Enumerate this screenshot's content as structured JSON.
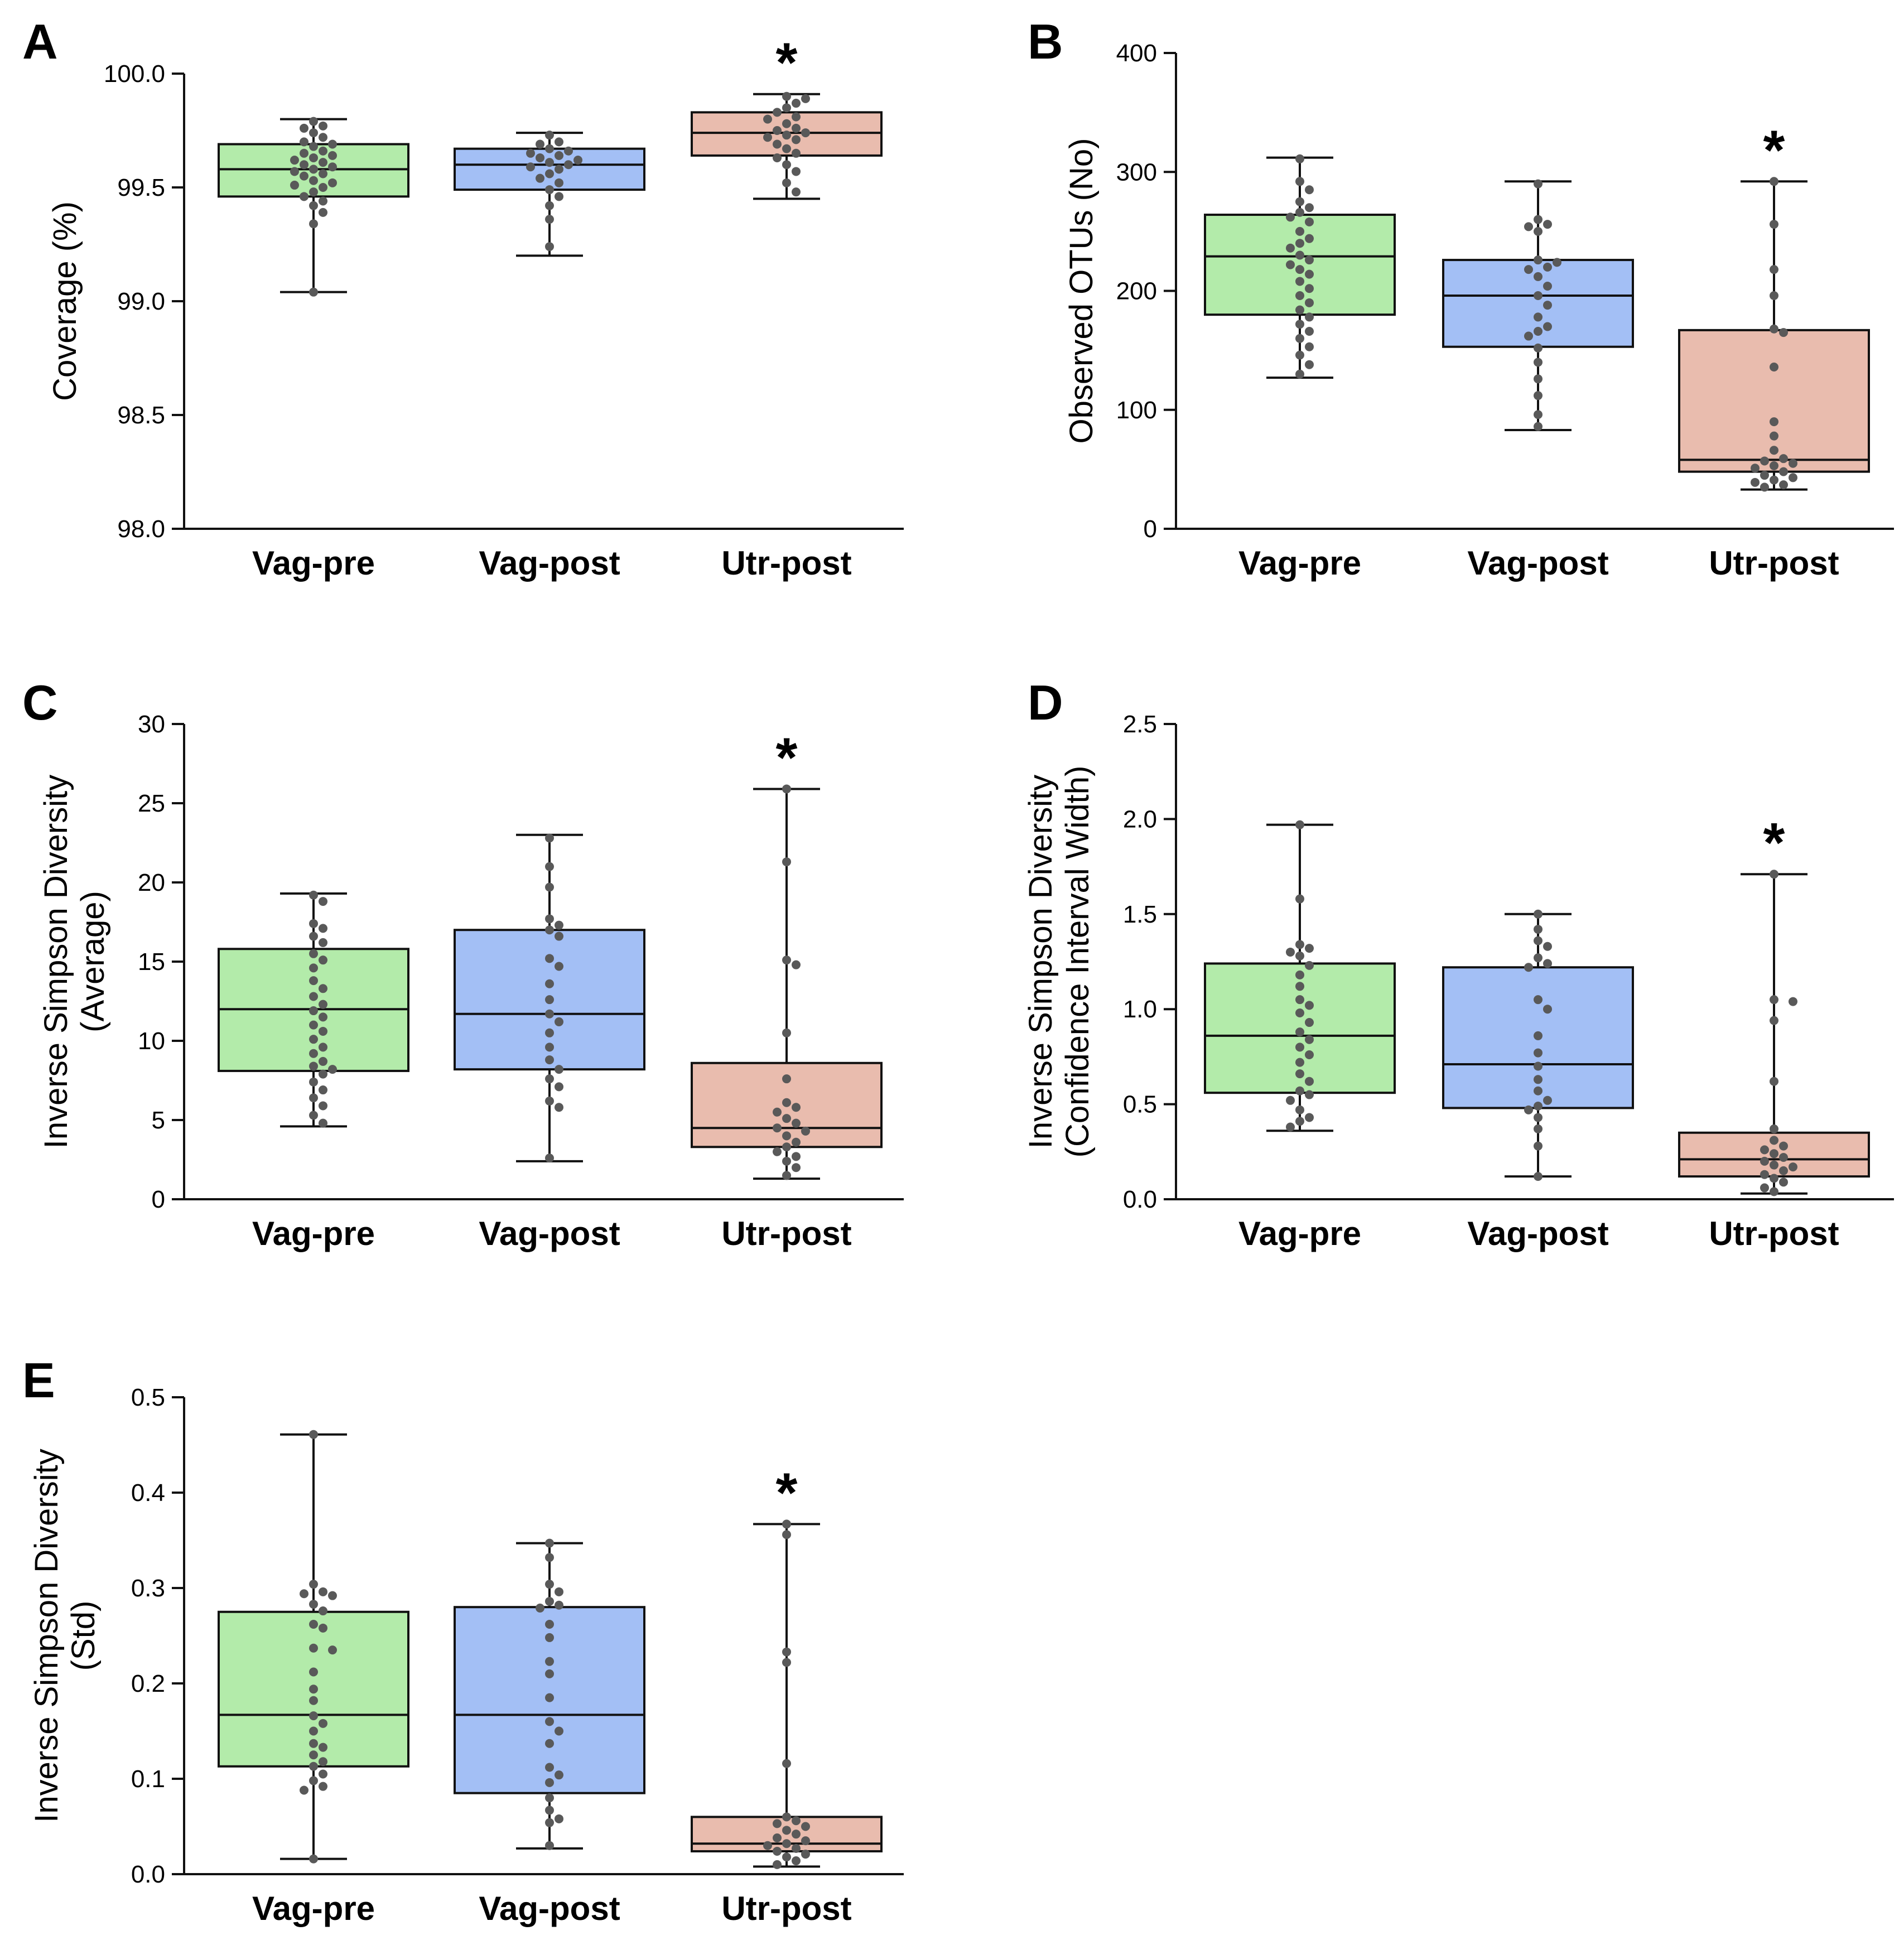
{
  "figure": {
    "title": ""
  },
  "chart_data": [
    {
      "id": "A",
      "panel_label": "A",
      "type": "box",
      "ylabel_lines": [
        "Coverage (%)"
      ],
      "ylim": [
        98.0,
        100.0
      ],
      "yticks": [
        98.0,
        98.5,
        99.0,
        99.5,
        100.0
      ],
      "ytick_labels": [
        "98.0",
        "98.5",
        "99.0",
        "99.5",
        "100.0"
      ],
      "categories": [
        "Vag-pre",
        "Vag-post",
        "Utr-post"
      ],
      "box_colors": [
        "#b3ebaa",
        "#a3bff5",
        "#e9bcae"
      ],
      "significance": {
        "category_index": 2,
        "mark": "*"
      },
      "groups": [
        {
          "name": "Vag-pre",
          "min": 99.04,
          "q1": 99.46,
          "median": 99.58,
          "q3": 99.69,
          "max": 99.8,
          "points": [
            99.79,
            99.77,
            99.76,
            99.74,
            99.72,
            99.7,
            99.69,
            99.68,
            99.66,
            99.65,
            99.64,
            99.63,
            99.62,
            99.61,
            99.6,
            99.59,
            99.58,
            99.57,
            99.56,
            99.55,
            99.53,
            99.52,
            99.51,
            99.5,
            99.48,
            99.46,
            99.44,
            99.42,
            99.39,
            99.34,
            99.04
          ]
        },
        {
          "name": "Vag-post",
          "min": 99.2,
          "q1": 99.49,
          "median": 99.6,
          "q3": 99.67,
          "max": 99.74,
          "points": [
            99.73,
            99.7,
            99.69,
            99.67,
            99.66,
            99.65,
            99.64,
            99.63,
            99.62,
            99.61,
            99.6,
            99.59,
            99.58,
            99.56,
            99.54,
            99.52,
            99.49,
            99.46,
            99.42,
            99.36,
            99.24
          ]
        },
        {
          "name": "Utr-post",
          "min": 99.45,
          "q1": 99.64,
          "median": 99.74,
          "q3": 99.83,
          "max": 99.91,
          "points": [
            99.9,
            99.89,
            99.87,
            99.85,
            99.83,
            99.81,
            99.8,
            99.78,
            99.76,
            99.75,
            99.74,
            99.73,
            99.72,
            99.71,
            99.69,
            99.67,
            99.65,
            99.63,
            99.6,
            99.57,
            99.52,
            99.48
          ]
        }
      ]
    },
    {
      "id": "B",
      "panel_label": "B",
      "type": "box",
      "ylabel_lines": [
        "Observed OTUs (No)"
      ],
      "ylim": [
        0,
        400
      ],
      "yticks": [
        0,
        100,
        200,
        300,
        400
      ],
      "ytick_labels": [
        "0",
        "100",
        "200",
        "300",
        "400"
      ],
      "categories": [
        "Vag-pre",
        "Vag-post",
        "Utr-post"
      ],
      "box_colors": [
        "#b3ebaa",
        "#a3bff5",
        "#e9bcae"
      ],
      "significance": {
        "category_index": 2,
        "mark": "*"
      },
      "groups": [
        {
          "name": "Vag-pre",
          "min": 127,
          "q1": 180,
          "median": 229,
          "q3": 264,
          "max": 312,
          "points": [
            311,
            292,
            285,
            275,
            270,
            266,
            262,
            258,
            250,
            244,
            240,
            236,
            230,
            226,
            222,
            218,
            214,
            208,
            202,
            196,
            190,
            184,
            178,
            172,
            166,
            160,
            153,
            146,
            138,
            130
          ]
        },
        {
          "name": "Vag-post",
          "min": 83,
          "q1": 153,
          "median": 196,
          "q3": 226,
          "max": 292,
          "points": [
            290,
            260,
            256,
            254,
            250,
            226,
            224,
            220,
            218,
            212,
            204,
            196,
            188,
            178,
            170,
            166,
            162,
            152,
            140,
            126,
            112,
            96,
            86
          ]
        },
        {
          "name": "Utr-post",
          "min": 33,
          "q1": 48,
          "median": 58,
          "q3": 167,
          "max": 292,
          "points": [
            292,
            256,
            218,
            196,
            168,
            165,
            136,
            90,
            78,
            66,
            59,
            57,
            55,
            53,
            51,
            48,
            45,
            43,
            41,
            39,
            37,
            35
          ]
        }
      ]
    },
    {
      "id": "C",
      "panel_label": "C",
      "type": "box",
      "ylabel_lines": [
        "Inverse Simpson Diversity",
        "(Average)"
      ],
      "ylim": [
        0,
        30
      ],
      "yticks": [
        0,
        5,
        10,
        15,
        20,
        25,
        30
      ],
      "ytick_labels": [
        "0",
        "5",
        "10",
        "15",
        "20",
        "25",
        "30"
      ],
      "categories": [
        "Vag-pre",
        "Vag-post",
        "Utr-post"
      ],
      "box_colors": [
        "#b3ebaa",
        "#a3bff5",
        "#e9bcae"
      ],
      "significance": {
        "category_index": 2,
        "mark": "*"
      },
      "groups": [
        {
          "name": "Vag-pre",
          "min": 4.6,
          "q1": 8.1,
          "median": 12.0,
          "q3": 15.8,
          "max": 19.3,
          "points": [
            19.2,
            18.8,
            17.4,
            17.1,
            16.6,
            16.2,
            15.5,
            15.1,
            14.6,
            13.8,
            13.3,
            12.8,
            12.3,
            11.9,
            11.5,
            11.0,
            10.6,
            10.1,
            9.6,
            9.2,
            8.7,
            8.4,
            8.2,
            7.9,
            7.4,
            6.9,
            6.4,
            5.9,
            5.3,
            4.8
          ]
        },
        {
          "name": "Vag-post",
          "min": 2.4,
          "q1": 8.2,
          "median": 11.7,
          "q3": 17.0,
          "max": 23.0,
          "points": [
            22.8,
            21.0,
            19.7,
            17.7,
            17.3,
            17.0,
            16.6,
            15.2,
            14.7,
            13.6,
            12.6,
            11.7,
            11.2,
            10.5,
            9.6,
            8.8,
            8.2,
            7.6,
            7.1,
            6.2,
            5.8,
            2.6
          ]
        },
        {
          "name": "Utr-post",
          "min": 1.3,
          "q1": 3.3,
          "median": 4.5,
          "q3": 8.6,
          "max": 25.9,
          "points": [
            25.9,
            21.3,
            15.1,
            14.8,
            10.5,
            7.6,
            6.1,
            5.8,
            5.5,
            5.1,
            4.8,
            4.5,
            4.3,
            4.0,
            3.6,
            3.3,
            3.0,
            2.7,
            2.4,
            2.0,
            1.5
          ]
        }
      ]
    },
    {
      "id": "D",
      "panel_label": "D",
      "type": "box",
      "ylabel_lines": [
        "Inverse Simpson Diversity",
        "(Confidence Interval Width)"
      ],
      "ylim": [
        0.0,
        2.5
      ],
      "yticks": [
        0.0,
        0.5,
        1.0,
        1.5,
        2.0,
        2.5
      ],
      "ytick_labels": [
        "0.0",
        "0.5",
        "1.0",
        "1.5",
        "2.0",
        "2.5"
      ],
      "categories": [
        "Vag-pre",
        "Vag-post",
        "Utr-post"
      ],
      "box_colors": [
        "#b3ebaa",
        "#a3bff5",
        "#e9bcae"
      ],
      "significance": {
        "category_index": 2,
        "mark": "*"
      },
      "groups": [
        {
          "name": "Vag-pre",
          "min": 0.36,
          "q1": 0.56,
          "median": 0.86,
          "q3": 1.24,
          "max": 1.97,
          "points": [
            1.97,
            1.58,
            1.34,
            1.32,
            1.3,
            1.28,
            1.23,
            1.18,
            1.12,
            1.05,
            1.02,
            0.98,
            0.93,
            0.88,
            0.84,
            0.8,
            0.76,
            0.72,
            0.66,
            0.62,
            0.57,
            0.55,
            0.52,
            0.47,
            0.43,
            0.41,
            0.38
          ]
        },
        {
          "name": "Vag-post",
          "min": 0.12,
          "q1": 0.48,
          "median": 0.71,
          "q3": 1.22,
          "max": 1.5,
          "points": [
            1.5,
            1.42,
            1.36,
            1.33,
            1.27,
            1.24,
            1.22,
            1.05,
            1.0,
            0.86,
            0.77,
            0.7,
            0.63,
            0.57,
            0.52,
            0.49,
            0.47,
            0.43,
            0.37,
            0.28,
            0.12
          ]
        },
        {
          "name": "Utr-post",
          "min": 0.03,
          "q1": 0.12,
          "median": 0.21,
          "q3": 0.35,
          "max": 1.71,
          "points": [
            1.71,
            1.05,
            1.04,
            0.94,
            0.62,
            0.37,
            0.31,
            0.28,
            0.26,
            0.24,
            0.22,
            0.2,
            0.18,
            0.17,
            0.15,
            0.13,
            0.11,
            0.09,
            0.06,
            0.04
          ]
        }
      ]
    },
    {
      "id": "E",
      "panel_label": "E",
      "type": "box",
      "ylabel_lines": [
        "Inverse Simpson Diversity",
        "(Std)"
      ],
      "ylim": [
        0.0,
        0.5
      ],
      "yticks": [
        0.0,
        0.1,
        0.2,
        0.3,
        0.4,
        0.5
      ],
      "ytick_labels": [
        "0.0",
        "0.1",
        "0.2",
        "0.3",
        "0.4",
        "0.5"
      ],
      "categories": [
        "Vag-pre",
        "Vag-post",
        "Utr-post"
      ],
      "box_colors": [
        "#b3ebaa",
        "#a3bff5",
        "#e9bcae"
      ],
      "significance": {
        "category_index": 2,
        "mark": "*"
      },
      "groups": [
        {
          "name": "Vag-pre",
          "min": 0.016,
          "q1": 0.113,
          "median": 0.167,
          "q3": 0.275,
          "max": 0.461,
          "points": [
            0.461,
            0.304,
            0.296,
            0.294,
            0.292,
            0.283,
            0.276,
            0.262,
            0.258,
            0.237,
            0.235,
            0.212,
            0.194,
            0.182,
            0.166,
            0.158,
            0.15,
            0.137,
            0.133,
            0.125,
            0.118,
            0.113,
            0.105,
            0.098,
            0.092,
            0.088,
            0.016
          ]
        },
        {
          "name": "Vag-post",
          "min": 0.027,
          "q1": 0.085,
          "median": 0.167,
          "q3": 0.28,
          "max": 0.347,
          "points": [
            0.347,
            0.332,
            0.304,
            0.296,
            0.286,
            0.282,
            0.279,
            0.262,
            0.248,
            0.223,
            0.21,
            0.185,
            0.16,
            0.15,
            0.137,
            0.112,
            0.104,
            0.096,
            0.08,
            0.067,
            0.058,
            0.054,
            0.03
          ]
        },
        {
          "name": "Utr-post",
          "min": 0.008,
          "q1": 0.024,
          "median": 0.032,
          "q3": 0.06,
          "max": 0.367,
          "points": [
            0.367,
            0.356,
            0.233,
            0.222,
            0.116,
            0.06,
            0.056,
            0.053,
            0.05,
            0.046,
            0.042,
            0.038,
            0.035,
            0.032,
            0.03,
            0.027,
            0.024,
            0.021,
            0.018,
            0.014,
            0.01
          ]
        }
      ]
    }
  ]
}
